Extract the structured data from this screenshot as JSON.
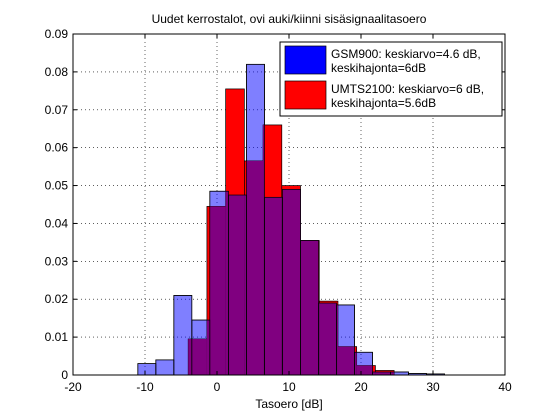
{
  "chart_data": {
    "type": "bar",
    "title": "Uudet kerrostalot, ovi auki/kiinni sisäsignaalitasoero",
    "xlabel": "Tasoero [dB]",
    "ylabel": "",
    "xlim": [
      -20,
      40
    ],
    "ylim": [
      0,
      0.09
    ],
    "xticks": [
      "-20",
      "-10",
      "0",
      "10",
      "20",
      "30",
      "40"
    ],
    "yticks": [
      "0",
      "0.01",
      "0.02",
      "0.03",
      "0.04",
      "0.05",
      "0.06",
      "0.07",
      "0.08",
      "0.09"
    ],
    "grid": true,
    "legend_position": "top-right",
    "series": [
      {
        "name": "GSM900: keskiarvo=4.6 dB, keskihajonta=6dB",
        "color": "#0000ff",
        "fill_opacity": 0.5,
        "bins": [
          {
            "x0": -11,
            "x1": -8.5,
            "y": 0.003
          },
          {
            "x0": -8.5,
            "x1": -6,
            "y": 0.004
          },
          {
            "x0": -6,
            "x1": -3.5,
            "y": 0.021
          },
          {
            "x0": -3.5,
            "x1": -1,
            "y": 0.0145
          },
          {
            "x0": -1,
            "x1": 1.6,
            "y": 0.0485
          },
          {
            "x0": 1.6,
            "x1": 4.1,
            "y": 0.0475
          },
          {
            "x0": 4.1,
            "x1": 6.6,
            "y": 0.082
          },
          {
            "x0": 6.6,
            "x1": 9.1,
            "y": 0.0469
          },
          {
            "x0": 9.1,
            "x1": 11.6,
            "y": 0.049
          },
          {
            "x0": 11.6,
            "x1": 14.1,
            "y": 0.0355
          },
          {
            "x0": 14.1,
            "x1": 16.6,
            "y": 0.019
          },
          {
            "x0": 16.6,
            "x1": 19.1,
            "y": 0.0185
          },
          {
            "x0": 19.1,
            "x1": 21.6,
            "y": 0.006
          },
          {
            "x0": 21.6,
            "x1": 24.1,
            "y": 0.0008
          },
          {
            "x0": 24.1,
            "x1": 26.6,
            "y": 0.0008
          },
          {
            "x0": 26.6,
            "x1": 29.1,
            "y": 0.0004
          },
          {
            "x0": 29.1,
            "x1": 31.6,
            "y": 0.0003
          }
        ]
      },
      {
        "name": "UMTS2100: keskiarvo=6 dB, keskihajonta=5.6dB",
        "color": "#ff0000",
        "fill_opacity": 1,
        "bins": [
          {
            "x0": -4,
            "x1": -1.4,
            "y": 0.0095
          },
          {
            "x0": -1.4,
            "x1": 1.2,
            "y": 0.0445
          },
          {
            "x0": 1.2,
            "x1": 3.8,
            "y": 0.0755
          },
          {
            "x0": 3.8,
            "x1": 6.4,
            "y": 0.0565
          },
          {
            "x0": 6.4,
            "x1": 9,
            "y": 0.066
          },
          {
            "x0": 9,
            "x1": 11.6,
            "y": 0.05
          },
          {
            "x0": 11.6,
            "x1": 14.2,
            "y": 0.0355
          },
          {
            "x0": 14.2,
            "x1": 16.8,
            "y": 0.0195
          },
          {
            "x0": 16.8,
            "x1": 19.4,
            "y": 0.0075
          },
          {
            "x0": 19.4,
            "x1": 22,
            "y": 0.0025
          },
          {
            "x0": 22,
            "x1": 24.6,
            "y": 0.0012
          }
        ]
      }
    ]
  }
}
